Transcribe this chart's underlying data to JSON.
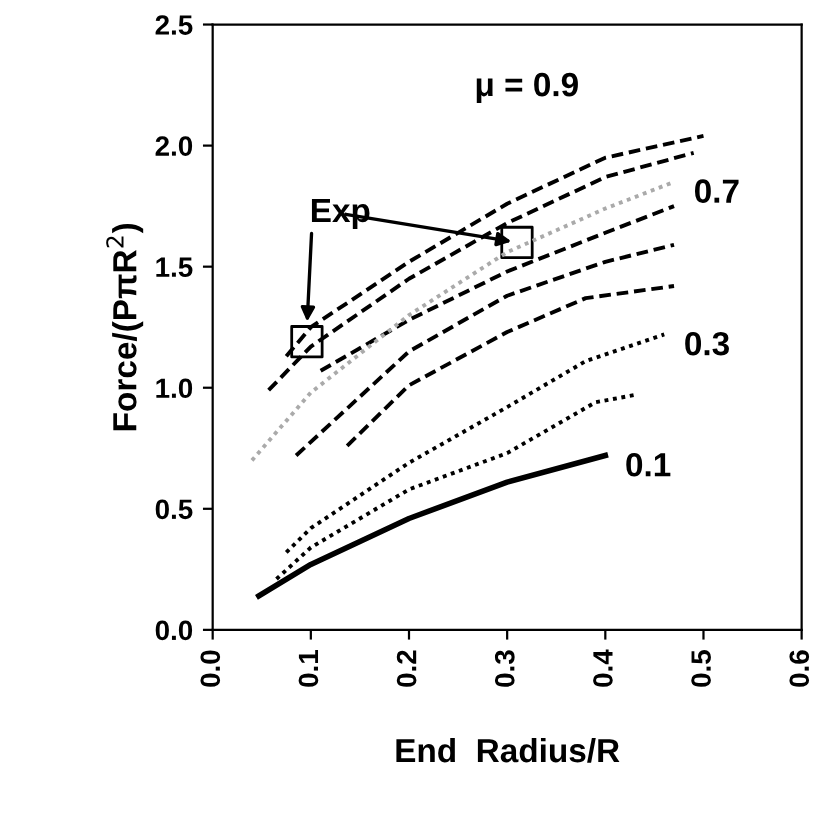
{
  "chart_data": {
    "type": "line",
    "xlabel": "End  Radius/R",
    "ylabel": "Force/(PπR$^{2}$)",
    "xlim": [
      0.0,
      0.6
    ],
    "ylim": [
      0.0,
      2.5
    ],
    "xticks": [
      {
        "value": 0.0,
        "label": "0.0"
      },
      0.1,
      0.2,
      0.3,
      0.4,
      0.5,
      0.6
    ],
    "yticks": [
      {
        "value": 0.0,
        "label": "0.0"
      },
      0.5,
      {
        "value": 1.0,
        "label": "1.0"
      },
      1.5,
      {
        "value": 2.0,
        "label": "2.0"
      },
      2.5
    ],
    "grid": false,
    "legend": false,
    "marker": "none",
    "series": [
      {
        "name": "0.1",
        "color": "#000000",
        "line_style": "solid",
        "x": [
          0.047,
          0.1,
          0.2,
          0.3,
          0.4
        ],
        "values": [
          0.14,
          0.27,
          0.46,
          0.61,
          0.72
        ]
      },
      {
        "color": "#000000",
        "line_style": "dotted",
        "x": [
          0.065,
          0.1,
          0.2,
          0.3,
          0.39,
          0.43
        ],
        "values": [
          0.21,
          0.34,
          0.58,
          0.73,
          0.94,
          0.97
        ]
      },
      {
        "name": "0.3",
        "color": "#000000",
        "line_style": "dotted",
        "x": [
          0.075,
          0.1,
          0.2,
          0.3,
          0.38,
          0.46
        ],
        "values": [
          0.32,
          0.42,
          0.69,
          0.92,
          1.11,
          1.22
        ]
      },
      {
        "color": "#000000",
        "line_style": "dashed",
        "x": [
          0.137,
          0.2,
          0.3,
          0.38,
          0.47
        ],
        "values": [
          0.76,
          1.01,
          1.23,
          1.37,
          1.42
        ]
      },
      {
        "color": "#000000",
        "line_style": "dashed",
        "x": [
          0.085,
          0.2,
          0.3,
          0.4,
          0.47
        ],
        "values": [
          0.72,
          1.15,
          1.38,
          1.52,
          1.59
        ]
      },
      {
        "color": "#000000",
        "line_style": "dashed",
        "x": [
          0.11,
          0.2,
          0.3,
          0.4,
          0.47
        ],
        "values": [
          1.07,
          1.28,
          1.48,
          1.64,
          1.75
        ]
      },
      {
        "name": "0.7",
        "color": "#aaaaaa",
        "line_style": "dotted",
        "x": [
          0.04,
          0.1,
          0.2,
          0.3,
          0.4,
          0.47
        ],
        "values": [
          0.7,
          0.98,
          1.3,
          1.56,
          1.74,
          1.85
        ]
      },
      {
        "color": "#000000",
        "line_style": "dashed",
        "x": [
          0.057,
          0.1,
          0.2,
          0.3,
          0.4,
          0.49
        ],
        "values": [
          0.99,
          1.17,
          1.45,
          1.68,
          1.87,
          1.97
        ]
      },
      {
        "name": "μ = 0.9",
        "color": "#000000",
        "line_style": "dashed",
        "x": [
          0.075,
          0.1,
          0.2,
          0.3,
          0.4,
          0.5
        ],
        "values": [
          1.13,
          1.25,
          1.52,
          1.76,
          1.95,
          2.04
        ]
      },
      {
        "name": "Exp",
        "type": "scatter",
        "marker": "square",
        "color": "#000000",
        "x": [
          0.096,
          0.31
        ],
        "values": [
          1.19,
          1.6
        ]
      }
    ]
  }
}
